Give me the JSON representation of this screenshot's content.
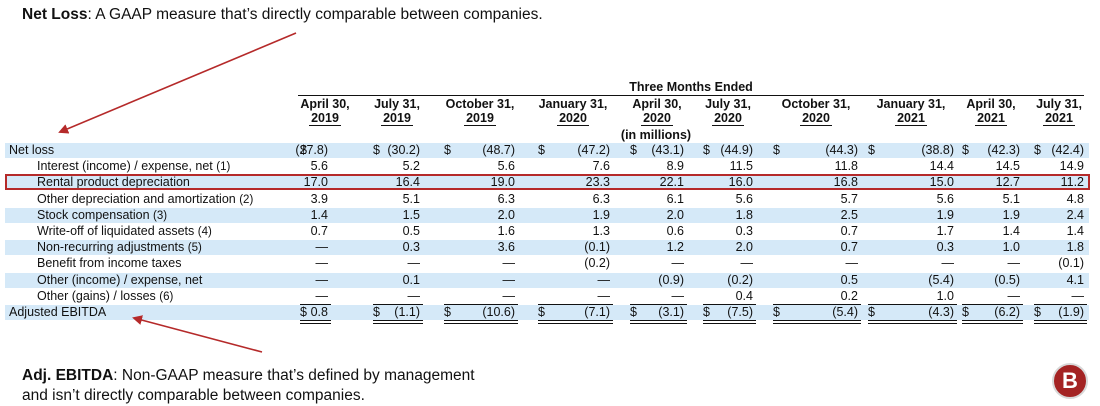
{
  "annotations": {
    "top": {
      "title": "Net Loss",
      "text": ": A GAAP measure that’s directly comparable between companies."
    },
    "bottom": {
      "title": "Adj. EBITDA",
      "line1": ": Non-GAAP measure that’s defined by management",
      "line2": "and isn’t directly comparable between companies."
    }
  },
  "table": {
    "group_header": "Three Months Ended",
    "unit_note": "(in millions)",
    "columns": [
      {
        "l1": "April 30,",
        "l2": "2019"
      },
      {
        "l1": "July 31,",
        "l2": "2019"
      },
      {
        "l1": "October 31,",
        "l2": "2019"
      },
      {
        "l1": "January 31,",
        "l2": "2020"
      },
      {
        "l1": "April 30,",
        "l2": "2020"
      },
      {
        "l1": "July 31,",
        "l2": "2020"
      },
      {
        "l1": "October 31,",
        "l2": "2020"
      },
      {
        "l1": "January 31,",
        "l2": "2021"
      },
      {
        "l1": "April 30,",
        "l2": "2021"
      },
      {
        "l1": "July 31,",
        "l2": "2021"
      }
    ],
    "rows": [
      {
        "label": "Net loss",
        "note": "",
        "indent": false,
        "values": [
          "(27.8)",
          "(30.2)",
          "(48.7)",
          "(47.2)",
          "(43.1)",
          "(44.9)",
          "(44.3)",
          "(38.8)",
          "(42.3)",
          "(42.4)"
        ]
      },
      {
        "label": "Interest (income) / expense, net",
        "note": "(1)",
        "indent": true,
        "values": [
          "5.6",
          "5.2",
          "5.6",
          "7.6",
          "8.9",
          "11.5",
          "11.8",
          "14.4",
          "14.5",
          "14.9"
        ]
      },
      {
        "label": "Rental product depreciation",
        "note": "",
        "indent": true,
        "values": [
          "17.0",
          "16.4",
          "19.0",
          "23.3",
          "22.1",
          "16.0",
          "16.8",
          "15.0",
          "12.7",
          "11.2"
        ]
      },
      {
        "label": "Other depreciation and amortization",
        "note": "(2)",
        "indent": true,
        "values": [
          "3.9",
          "5.1",
          "6.3",
          "6.3",
          "6.1",
          "5.6",
          "5.7",
          "5.6",
          "5.1",
          "4.8"
        ]
      },
      {
        "label": "Stock compensation",
        "note": "(3)",
        "indent": true,
        "values": [
          "1.4",
          "1.5",
          "2.0",
          "1.9",
          "2.0",
          "1.8",
          "2.5",
          "1.9",
          "1.9",
          "2.4"
        ]
      },
      {
        "label": "Write-off of liquidated assets",
        "note": "(4)",
        "indent": true,
        "values": [
          "0.7",
          "0.5",
          "1.6",
          "1.3",
          "0.6",
          "0.3",
          "0.7",
          "1.7",
          "1.4",
          "1.4"
        ]
      },
      {
        "label": "Non-recurring adjustments",
        "note": "(5)",
        "indent": true,
        "values": [
          "—",
          "0.3",
          "3.6",
          "(0.1)",
          "1.2",
          "2.0",
          "0.7",
          "0.3",
          "1.0",
          "1.8"
        ]
      },
      {
        "label": "Benefit from income taxes",
        "note": "",
        "indent": true,
        "values": [
          "—",
          "—",
          "—",
          "(0.2)",
          "—",
          "—",
          "—",
          "—",
          "—",
          "(0.1)"
        ]
      },
      {
        "label": "Other (income) / expense, net",
        "note": "",
        "indent": true,
        "values": [
          "—",
          "0.1",
          "—",
          "—",
          "(0.9)",
          "(0.2)",
          "0.5",
          "(5.4)",
          "(0.5)",
          "4.1"
        ]
      },
      {
        "label": "Other (gains) / losses",
        "note": "(6)",
        "indent": true,
        "values": [
          "—",
          "—",
          "—",
          "—",
          "—",
          "0.4",
          "0.2",
          "1.0",
          "—",
          "—"
        ]
      },
      {
        "label": "Adjusted EBITDA",
        "note": "",
        "indent": false,
        "values": [
          "0.8",
          "(1.1)",
          "(10.6)",
          "(7.1)",
          "(3.1)",
          "(7.5)",
          "(5.4)",
          "(4.3)",
          "(6.2)",
          "(1.9)"
        ]
      }
    ],
    "currency_symbol": "$",
    "highlight_row": 2
  },
  "logo": {
    "letter": "B",
    "color": "#a42323"
  },
  "colors": {
    "stripe": "#d5e9f8",
    "highlight": "#b52a2a",
    "arrow": "#b52a2a"
  }
}
